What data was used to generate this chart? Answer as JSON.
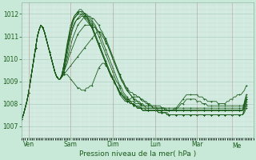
{
  "xlabel": "Pression niveau de la mer( hPa )",
  "bg_color": "#c8e8d8",
  "plot_bg_color": "#d8ede4",
  "grid_color_major": "#a8ccbc",
  "grid_color_minor": "#b8d8c8",
  "line_color": "#1a5c1a",
  "ylim": [
    1006.5,
    1012.5
  ],
  "xlim": [
    0,
    132
  ],
  "day_labels": [
    "Ven",
    "Sam",
    "Dim",
    "Lun",
    "Mar",
    "Me"
  ],
  "day_positions": [
    4,
    28,
    52,
    76,
    100,
    120
  ],
  "series": [
    [
      1007.3,
      1007.5,
      1007.8,
      1008.1,
      1008.5,
      1009.0,
      1009.5,
      1010.0,
      1010.5,
      1011.0,
      1011.3,
      1011.5,
      1011.4,
      1011.2,
      1010.9,
      1010.6,
      1010.3,
      1010.0,
      1009.7,
      1009.4,
      1009.2,
      1009.1,
      1009.1,
      1009.2,
      1009.3,
      1009.3,
      1009.3,
      1009.2,
      1009.1,
      1009.0,
      1008.9,
      1008.8,
      1008.7,
      1008.7,
      1008.6,
      1008.6,
      1008.6,
      1008.7,
      1008.7,
      1008.8,
      1008.8,
      1009.0,
      1009.2,
      1009.4,
      1009.6,
      1009.7,
      1009.8,
      1009.8,
      1009.7,
      1009.6,
      1009.4,
      1009.3,
      1009.1,
      1009.0,
      1008.8,
      1008.6,
      1008.4,
      1008.3,
      1008.2,
      1008.1,
      1008.1,
      1008.2,
      1008.2,
      1008.3,
      1008.3,
      1008.3,
      1008.3,
      1008.3,
      1008.2,
      1008.2,
      1008.1,
      1008.1,
      1008.0,
      1008.0,
      1007.9,
      1007.8,
      1007.8,
      1007.7,
      1007.7,
      1007.7,
      1007.6,
      1007.6,
      1007.6,
      1007.6,
      1007.5,
      1007.5,
      1007.5,
      1007.5,
      1007.5,
      1007.5,
      1007.5,
      1007.5,
      1007.5,
      1007.5,
      1007.5,
      1007.5,
      1007.5,
      1007.5,
      1007.5,
      1007.5,
      1007.5,
      1007.5,
      1007.5,
      1007.5,
      1007.5,
      1007.5,
      1007.5,
      1007.5,
      1007.5,
      1007.5,
      1007.5,
      1007.5,
      1007.5,
      1007.5,
      1007.5,
      1007.5,
      1007.5,
      1007.5,
      1007.5,
      1007.5,
      1007.5,
      1007.5,
      1007.5,
      1007.5,
      1007.5,
      1007.5,
      1007.5,
      1007.6,
      1007.8
    ],
    [
      1007.3,
      1007.5,
      1007.8,
      1008.1,
      1008.5,
      1009.0,
      1009.5,
      1010.0,
      1010.5,
      1011.0,
      1011.3,
      1011.5,
      1011.4,
      1011.2,
      1010.9,
      1010.6,
      1010.3,
      1010.0,
      1009.7,
      1009.4,
      1009.2,
      1009.1,
      1009.1,
      1009.2,
      1009.3,
      1009.4,
      1009.5,
      1009.6,
      1009.7,
      1009.8,
      1009.9,
      1010.0,
      1010.1,
      1010.2,
      1010.3,
      1010.4,
      1010.5,
      1010.6,
      1010.7,
      1010.8,
      1010.9,
      1011.0,
      1011.1,
      1011.2,
      1011.2,
      1011.2,
      1011.1,
      1011.0,
      1010.9,
      1010.7,
      1010.5,
      1010.3,
      1010.1,
      1009.9,
      1009.7,
      1009.5,
      1009.3,
      1009.1,
      1009.0,
      1008.8,
      1008.7,
      1008.6,
      1008.5,
      1008.5,
      1008.4,
      1008.4,
      1008.3,
      1008.3,
      1008.2,
      1008.1,
      1008.1,
      1008.0,
      1008.0,
      1007.9,
      1007.9,
      1007.8,
      1007.8,
      1007.8,
      1007.7,
      1007.7,
      1007.7,
      1007.7,
      1007.7,
      1007.7,
      1007.7,
      1007.7,
      1007.7,
      1007.8,
      1007.8,
      1007.9,
      1008.0,
      1008.1,
      1008.2,
      1008.3,
      1008.4,
      1008.4,
      1008.4,
      1008.4,
      1008.4,
      1008.4,
      1008.4,
      1008.3,
      1008.3,
      1008.3,
      1008.2,
      1008.2,
      1008.1,
      1008.1,
      1008.1,
      1008.1,
      1008.1,
      1008.1,
      1008.0,
      1008.0,
      1008.0,
      1008.0,
      1008.0,
      1008.1,
      1008.1,
      1008.2,
      1008.2,
      1008.3,
      1008.3,
      1008.4,
      1008.4,
      1008.4,
      1008.5,
      1008.6,
      1008.8
    ],
    [
      1007.3,
      1007.5,
      1007.8,
      1008.1,
      1008.5,
      1009.0,
      1009.5,
      1010.0,
      1010.5,
      1011.0,
      1011.3,
      1011.5,
      1011.4,
      1011.2,
      1010.9,
      1010.6,
      1010.3,
      1010.0,
      1009.7,
      1009.4,
      1009.2,
      1009.1,
      1009.1,
      1009.2,
      1009.4,
      1009.6,
      1009.8,
      1010.1,
      1010.3,
      1010.5,
      1010.7,
      1010.9,
      1011.1,
      1011.2,
      1011.3,
      1011.4,
      1011.5,
      1011.5,
      1011.5,
      1011.5,
      1011.5,
      1011.4,
      1011.4,
      1011.3,
      1011.2,
      1011.1,
      1011.0,
      1010.9,
      1010.7,
      1010.6,
      1010.4,
      1010.2,
      1010.0,
      1009.8,
      1009.6,
      1009.4,
      1009.3,
      1009.1,
      1008.9,
      1008.8,
      1008.6,
      1008.5,
      1008.4,
      1008.3,
      1008.2,
      1008.2,
      1008.1,
      1008.1,
      1008.0,
      1008.0,
      1007.9,
      1007.9,
      1007.9,
      1007.9,
      1007.9,
      1007.9,
      1007.9,
      1007.9,
      1007.9,
      1007.9,
      1007.8,
      1007.8,
      1007.8,
      1007.7,
      1007.7,
      1007.7,
      1007.7,
      1007.7,
      1007.8,
      1007.8,
      1007.9,
      1008.0,
      1008.0,
      1008.1,
      1008.2,
      1008.2,
      1008.2,
      1008.2,
      1008.2,
      1008.2,
      1008.1,
      1008.1,
      1008.1,
      1008.0,
      1008.0,
      1008.0,
      1007.9,
      1007.9,
      1007.9,
      1007.9,
      1007.9,
      1007.9,
      1007.9,
      1007.9,
      1007.9,
      1007.9,
      1007.9,
      1007.9,
      1007.9,
      1007.9,
      1007.9,
      1007.9,
      1007.9,
      1007.9,
      1007.9,
      1007.9,
      1007.9,
      1008.0,
      1008.2
    ],
    [
      1007.3,
      1007.5,
      1007.8,
      1008.1,
      1008.5,
      1009.0,
      1009.5,
      1010.0,
      1010.5,
      1011.0,
      1011.3,
      1011.5,
      1011.4,
      1011.2,
      1010.9,
      1010.6,
      1010.3,
      1010.0,
      1009.7,
      1009.4,
      1009.2,
      1009.1,
      1009.1,
      1009.2,
      1009.4,
      1009.7,
      1010.0,
      1010.3,
      1010.6,
      1010.9,
      1011.1,
      1011.3,
      1011.5,
      1011.6,
      1011.7,
      1011.8,
      1011.9,
      1011.9,
      1011.9,
      1011.9,
      1011.8,
      1011.8,
      1011.7,
      1011.6,
      1011.5,
      1011.3,
      1011.2,
      1011.0,
      1010.8,
      1010.6,
      1010.4,
      1010.2,
      1010.0,
      1009.8,
      1009.6,
      1009.4,
      1009.2,
      1009.0,
      1008.9,
      1008.7,
      1008.6,
      1008.5,
      1008.4,
      1008.3,
      1008.2,
      1008.1,
      1008.1,
      1008.0,
      1008.0,
      1007.9,
      1007.9,
      1007.8,
      1007.8,
      1007.8,
      1007.8,
      1007.8,
      1007.8,
      1007.8,
      1007.8,
      1007.8,
      1007.8,
      1007.8,
      1007.7,
      1007.7,
      1007.7,
      1007.7,
      1007.7,
      1007.7,
      1007.7,
      1007.7,
      1007.7,
      1007.7,
      1007.7,
      1007.7,
      1007.7,
      1007.7,
      1007.7,
      1007.7,
      1007.7,
      1007.7,
      1007.7,
      1007.7,
      1007.7,
      1007.7,
      1007.7,
      1007.7,
      1007.7,
      1007.7,
      1007.7,
      1007.7,
      1007.7,
      1007.7,
      1007.7,
      1007.7,
      1007.7,
      1007.7,
      1007.7,
      1007.7,
      1007.7,
      1007.7,
      1007.7,
      1007.7,
      1007.7,
      1007.7,
      1007.7,
      1007.7,
      1007.7,
      1007.8,
      1008.0
    ],
    [
      1007.3,
      1007.5,
      1007.8,
      1008.1,
      1008.5,
      1009.0,
      1009.5,
      1010.0,
      1010.5,
      1011.0,
      1011.3,
      1011.5,
      1011.4,
      1011.2,
      1010.9,
      1010.6,
      1010.3,
      1010.0,
      1009.7,
      1009.4,
      1009.2,
      1009.1,
      1009.1,
      1009.2,
      1009.4,
      1009.8,
      1010.2,
      1010.6,
      1011.0,
      1011.3,
      1011.5,
      1011.7,
      1011.8,
      1011.9,
      1012.0,
      1012.0,
      1012.0,
      1012.0,
      1011.9,
      1011.8,
      1011.7,
      1011.6,
      1011.5,
      1011.3,
      1011.2,
      1011.0,
      1010.8,
      1010.6,
      1010.4,
      1010.2,
      1010.0,
      1009.8,
      1009.6,
      1009.4,
      1009.2,
      1009.0,
      1008.8,
      1008.7,
      1008.5,
      1008.4,
      1008.3,
      1008.2,
      1008.1,
      1008.0,
      1008.0,
      1007.9,
      1007.9,
      1007.8,
      1007.8,
      1007.7,
      1007.7,
      1007.7,
      1007.7,
      1007.7,
      1007.7,
      1007.7,
      1007.7,
      1007.7,
      1007.6,
      1007.6,
      1007.6,
      1007.6,
      1007.6,
      1007.5,
      1007.5,
      1007.5,
      1007.5,
      1007.5,
      1007.5,
      1007.5,
      1007.5,
      1007.5,
      1007.5,
      1007.5,
      1007.5,
      1007.5,
      1007.5,
      1007.5,
      1007.5,
      1007.5,
      1007.5,
      1007.5,
      1007.5,
      1007.5,
      1007.5,
      1007.5,
      1007.5,
      1007.5,
      1007.5,
      1007.5,
      1007.5,
      1007.5,
      1007.5,
      1007.5,
      1007.5,
      1007.5,
      1007.5,
      1007.5,
      1007.5,
      1007.5,
      1007.5,
      1007.5,
      1007.5,
      1007.5,
      1007.5,
      1007.5,
      1007.5,
      1007.7,
      1007.9
    ],
    [
      1007.3,
      1007.5,
      1007.8,
      1008.1,
      1008.5,
      1009.0,
      1009.5,
      1010.0,
      1010.5,
      1011.0,
      1011.3,
      1011.5,
      1011.4,
      1011.2,
      1010.9,
      1010.6,
      1010.3,
      1010.0,
      1009.7,
      1009.4,
      1009.2,
      1009.1,
      1009.1,
      1009.3,
      1009.6,
      1010.0,
      1010.4,
      1010.8,
      1011.1,
      1011.4,
      1011.6,
      1011.7,
      1011.8,
      1011.8,
      1011.9,
      1011.9,
      1011.9,
      1011.9,
      1011.8,
      1011.7,
      1011.6,
      1011.5,
      1011.4,
      1011.2,
      1011.0,
      1010.8,
      1010.6,
      1010.4,
      1010.2,
      1010.0,
      1009.8,
      1009.6,
      1009.4,
      1009.2,
      1009.0,
      1008.9,
      1008.7,
      1008.5,
      1008.4,
      1008.3,
      1008.2,
      1008.1,
      1008.0,
      1008.0,
      1007.9,
      1007.9,
      1007.8,
      1007.8,
      1007.8,
      1007.7,
      1007.7,
      1007.7,
      1007.7,
      1007.7,
      1007.7,
      1007.7,
      1007.7,
      1007.7,
      1007.6,
      1007.6,
      1007.6,
      1007.6,
      1007.6,
      1007.5,
      1007.5,
      1007.5,
      1007.5,
      1007.5,
      1007.5,
      1007.5,
      1007.5,
      1007.5,
      1007.5,
      1007.5,
      1007.5,
      1007.5,
      1007.5,
      1007.5,
      1007.5,
      1007.5,
      1007.5,
      1007.5,
      1007.5,
      1007.5,
      1007.5,
      1007.5,
      1007.5,
      1007.5,
      1007.5,
      1007.5,
      1007.5,
      1007.5,
      1007.5,
      1007.5,
      1007.5,
      1007.5,
      1007.5,
      1007.5,
      1007.5,
      1007.5,
      1007.5,
      1007.5,
      1007.5,
      1007.5,
      1007.5,
      1007.5,
      1007.5,
      1007.8,
      1008.1
    ],
    [
      1007.3,
      1007.5,
      1007.8,
      1008.1,
      1008.5,
      1009.0,
      1009.5,
      1010.0,
      1010.5,
      1011.0,
      1011.3,
      1011.5,
      1011.4,
      1011.2,
      1010.9,
      1010.6,
      1010.3,
      1010.0,
      1009.7,
      1009.4,
      1009.2,
      1009.1,
      1009.1,
      1009.3,
      1009.6,
      1010.0,
      1010.5,
      1010.9,
      1011.3,
      1011.6,
      1011.8,
      1011.9,
      1012.0,
      1012.0,
      1012.0,
      1011.9,
      1011.8,
      1011.7,
      1011.6,
      1011.5,
      1011.4,
      1011.2,
      1011.0,
      1010.8,
      1010.6,
      1010.4,
      1010.2,
      1010.0,
      1009.8,
      1009.6,
      1009.4,
      1009.2,
      1009.1,
      1008.9,
      1008.8,
      1008.6,
      1008.5,
      1008.4,
      1008.3,
      1008.2,
      1008.1,
      1008.1,
      1008.0,
      1008.0,
      1007.9,
      1007.9,
      1007.8,
      1007.8,
      1007.8,
      1007.8,
      1007.8,
      1007.8,
      1007.8,
      1007.8,
      1007.8,
      1007.8,
      1007.8,
      1007.8,
      1007.8,
      1007.8,
      1007.8,
      1007.8,
      1007.7,
      1007.7,
      1007.7,
      1007.7,
      1007.7,
      1007.7,
      1007.7,
      1007.7,
      1007.7,
      1007.7,
      1007.7,
      1007.7,
      1007.7,
      1007.7,
      1007.7,
      1007.7,
      1007.7,
      1007.7,
      1007.7,
      1007.7,
      1007.7,
      1007.7,
      1007.7,
      1007.7,
      1007.7,
      1007.7,
      1007.7,
      1007.7,
      1007.7,
      1007.7,
      1007.7,
      1007.7,
      1007.7,
      1007.7,
      1007.7,
      1007.7,
      1007.7,
      1007.7,
      1007.7,
      1007.7,
      1007.7,
      1007.7,
      1007.7,
      1007.7,
      1007.7,
      1007.9,
      1008.2
    ],
    [
      1007.3,
      1007.5,
      1007.8,
      1008.1,
      1008.5,
      1009.0,
      1009.5,
      1010.0,
      1010.5,
      1011.0,
      1011.3,
      1011.5,
      1011.4,
      1011.2,
      1010.9,
      1010.6,
      1010.3,
      1010.0,
      1009.7,
      1009.4,
      1009.2,
      1009.1,
      1009.1,
      1009.3,
      1009.7,
      1010.1,
      1010.5,
      1010.9,
      1011.3,
      1011.6,
      1011.8,
      1011.9,
      1012.0,
      1012.1,
      1012.1,
      1012.1,
      1012.0,
      1011.9,
      1011.8,
      1011.6,
      1011.5,
      1011.3,
      1011.1,
      1010.9,
      1010.7,
      1010.5,
      1010.3,
      1010.1,
      1009.9,
      1009.7,
      1009.5,
      1009.3,
      1009.2,
      1009.0,
      1008.8,
      1008.7,
      1008.5,
      1008.4,
      1008.3,
      1008.2,
      1008.2,
      1008.1,
      1008.1,
      1008.0,
      1008.0,
      1007.9,
      1007.9,
      1007.9,
      1007.8,
      1007.8,
      1007.8,
      1007.7,
      1007.7,
      1007.7,
      1007.7,
      1007.7,
      1007.7,
      1007.7,
      1007.7,
      1007.7,
      1007.7,
      1007.7,
      1007.7,
      1007.7,
      1007.7,
      1007.7,
      1007.7,
      1007.7,
      1007.7,
      1007.7,
      1007.7,
      1007.7,
      1007.7,
      1007.7,
      1007.7,
      1007.7,
      1007.7,
      1007.7,
      1007.7,
      1007.7,
      1007.7,
      1007.7,
      1007.7,
      1007.7,
      1007.7,
      1007.7,
      1007.7,
      1007.7,
      1007.7,
      1007.7,
      1007.7,
      1007.7,
      1007.7,
      1007.7,
      1007.7,
      1007.7,
      1007.7,
      1007.7,
      1007.7,
      1007.7,
      1007.7,
      1007.7,
      1007.7,
      1007.7,
      1007.7,
      1007.7,
      1007.7,
      1007.9,
      1008.2
    ],
    [
      1007.3,
      1007.5,
      1007.8,
      1008.1,
      1008.5,
      1009.0,
      1009.5,
      1010.0,
      1010.5,
      1011.0,
      1011.3,
      1011.5,
      1011.4,
      1011.2,
      1010.9,
      1010.6,
      1010.3,
      1010.0,
      1009.7,
      1009.4,
      1009.2,
      1009.1,
      1009.1,
      1009.3,
      1009.7,
      1010.1,
      1010.6,
      1011.0,
      1011.4,
      1011.7,
      1011.9,
      1012.0,
      1012.1,
      1012.1,
      1012.1,
      1012.0,
      1011.9,
      1011.8,
      1011.7,
      1011.5,
      1011.4,
      1011.2,
      1011.0,
      1010.8,
      1010.6,
      1010.4,
      1010.2,
      1010.0,
      1009.8,
      1009.6,
      1009.4,
      1009.3,
      1009.1,
      1008.9,
      1008.8,
      1008.7,
      1008.5,
      1008.4,
      1008.3,
      1008.3,
      1008.2,
      1008.2,
      1008.1,
      1008.1,
      1008.1,
      1008.0,
      1008.0,
      1008.0,
      1007.9,
      1007.9,
      1007.9,
      1007.9,
      1007.9,
      1007.9,
      1007.9,
      1007.9,
      1007.9,
      1007.8,
      1007.8,
      1007.8,
      1007.8,
      1007.8,
      1007.8,
      1007.8,
      1007.8,
      1007.8,
      1007.8,
      1007.8,
      1007.8,
      1007.8,
      1007.8,
      1007.8,
      1007.8,
      1007.8,
      1007.8,
      1007.8,
      1007.8,
      1007.8,
      1007.8,
      1007.8,
      1007.8,
      1007.8,
      1007.8,
      1007.8,
      1007.8,
      1007.8,
      1007.8,
      1007.8,
      1007.8,
      1007.8,
      1007.8,
      1007.8,
      1007.8,
      1007.8,
      1007.8,
      1007.8,
      1007.8,
      1007.8,
      1007.8,
      1007.8,
      1007.8,
      1007.8,
      1007.8,
      1007.8,
      1007.8,
      1007.8,
      1007.8,
      1008.0,
      1008.3
    ],
    [
      1007.3,
      1007.5,
      1007.8,
      1008.1,
      1008.5,
      1009.0,
      1009.5,
      1010.0,
      1010.5,
      1011.0,
      1011.3,
      1011.5,
      1011.4,
      1011.2,
      1010.9,
      1010.6,
      1010.3,
      1010.0,
      1009.7,
      1009.4,
      1009.2,
      1009.1,
      1009.1,
      1009.3,
      1009.7,
      1010.2,
      1010.7,
      1011.1,
      1011.5,
      1011.7,
      1011.9,
      1012.0,
      1012.1,
      1012.2,
      1012.2,
      1012.1,
      1012.0,
      1011.9,
      1011.7,
      1011.6,
      1011.4,
      1011.2,
      1011.0,
      1010.8,
      1010.6,
      1010.4,
      1010.2,
      1010.0,
      1009.8,
      1009.6,
      1009.4,
      1009.2,
      1009.1,
      1008.9,
      1008.8,
      1008.6,
      1008.5,
      1008.4,
      1008.3,
      1008.2,
      1008.1,
      1008.1,
      1008.0,
      1008.0,
      1007.9,
      1007.9,
      1007.8,
      1007.8,
      1007.8,
      1007.7,
      1007.7,
      1007.7,
      1007.7,
      1007.7,
      1007.7,
      1007.7,
      1007.7,
      1007.7,
      1007.7,
      1007.7,
      1007.7,
      1007.7,
      1007.7,
      1007.7,
      1007.7,
      1007.7,
      1007.7,
      1007.7,
      1007.7,
      1007.7,
      1007.7,
      1007.7,
      1007.7,
      1007.7,
      1007.7,
      1007.7,
      1007.7,
      1007.7,
      1007.7,
      1007.7,
      1007.7,
      1007.7,
      1007.7,
      1007.7,
      1007.7,
      1007.7,
      1007.7,
      1007.7,
      1007.7,
      1007.7,
      1007.7,
      1007.7,
      1007.7,
      1007.7,
      1007.7,
      1007.7,
      1007.7,
      1007.7,
      1007.7,
      1007.7,
      1007.7,
      1007.7,
      1007.7,
      1007.7,
      1007.7,
      1007.7,
      1007.7,
      1008.1,
      1008.4
    ]
  ]
}
